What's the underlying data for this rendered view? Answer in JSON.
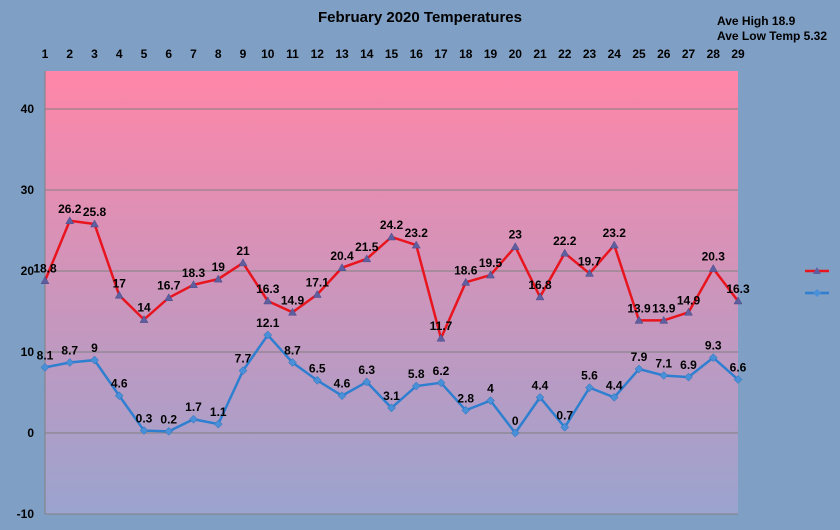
{
  "title": "February 2020 Temperatures",
  "stats": {
    "ave_high": "Ave High 18.9",
    "ave_low": "Ave Low  Temp 5.32"
  },
  "colors": {
    "high": "#e8141e",
    "low": "#2f7fd0",
    "band_top": "#ff86a8",
    "band_bottom": "#9aa4cf"
  },
  "chart_data": {
    "type": "line",
    "title": "February 2020 Temperatures",
    "x": [
      1,
      2,
      3,
      4,
      5,
      6,
      7,
      8,
      9,
      10,
      11,
      12,
      13,
      14,
      15,
      16,
      17,
      18,
      19,
      20,
      21,
      22,
      23,
      24,
      25,
      26,
      27,
      28,
      29
    ],
    "ylim": [
      -10,
      45
    ],
    "yticks": [
      -10,
      0,
      10,
      20,
      30,
      40
    ],
    "grid": true,
    "legend": "right",
    "series": [
      {
        "values": [
          18.8,
          26.2,
          25.8,
          17,
          14,
          16.7,
          18.3,
          19,
          21,
          16.3,
          14.9,
          17.1,
          20.4,
          21.5,
          24.2,
          23.2,
          11.7,
          18.6,
          19.5,
          23,
          16.8,
          22.2,
          19.7,
          23.2,
          13.9,
          13.9,
          14.9,
          20.3,
          16.3
        ]
      },
      {
        "values": [
          8.1,
          8.7,
          9,
          4.6,
          0.3,
          0.2,
          1.7,
          1.1,
          7.7,
          12.1,
          8.7,
          6.5,
          4.6,
          6.3,
          3.1,
          5.8,
          6.2,
          2.8,
          4,
          0,
          4.4,
          0.7,
          5.6,
          4.4,
          7.9,
          7.1,
          6.9,
          9.3,
          6.6
        ]
      }
    ]
  }
}
